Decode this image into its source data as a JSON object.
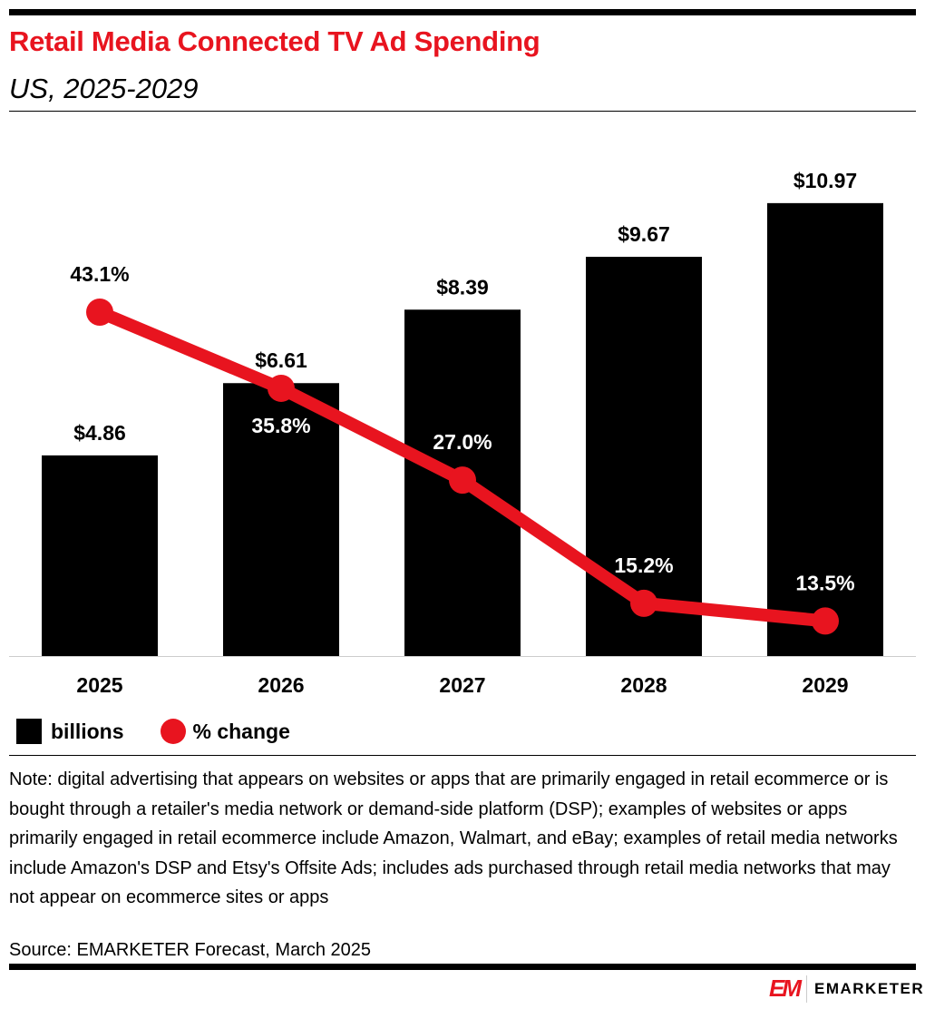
{
  "chart_data": {
    "type": "bar+line",
    "title": "Retail Media Connected TV Ad Spending",
    "subtitle": "US, 2025-2029",
    "categories": [
      "2025",
      "2026",
      "2027",
      "2028",
      "2029"
    ],
    "series": [
      {
        "name": "billions",
        "type": "bar",
        "values": [
          4.86,
          6.61,
          8.39,
          9.67,
          10.97
        ],
        "labels": [
          "$4.86",
          "$6.61",
          "$8.39",
          "$9.67",
          "$10.97"
        ],
        "color": "#000000"
      },
      {
        "name": "% change",
        "type": "line",
        "values": [
          43.1,
          35.8,
          27.0,
          15.2,
          13.5
        ],
        "labels": [
          "43.1%",
          "35.8%",
          "27.0%",
          "15.2%",
          "13.5%"
        ],
        "color": "#e8141f"
      }
    ],
    "grid": false,
    "legend_placement": "bottom-left"
  },
  "note": "Note: digital advertising that appears on websites or apps that are primarily engaged in retail ecommerce or is bought through a retailer's media network or demand-side platform (DSP); examples of websites or apps primarily engaged in retail ecommerce include Amazon, Walmart, and eBay; examples of retail media networks include Amazon's DSP and Etsy's Offsite Ads; includes ads purchased through retail media networks that may not appear on ecommerce sites or apps",
  "source": "Source: EMARKETER Forecast, March 2025",
  "logo": {
    "mark": "EM",
    "text": "EMARKETER"
  }
}
